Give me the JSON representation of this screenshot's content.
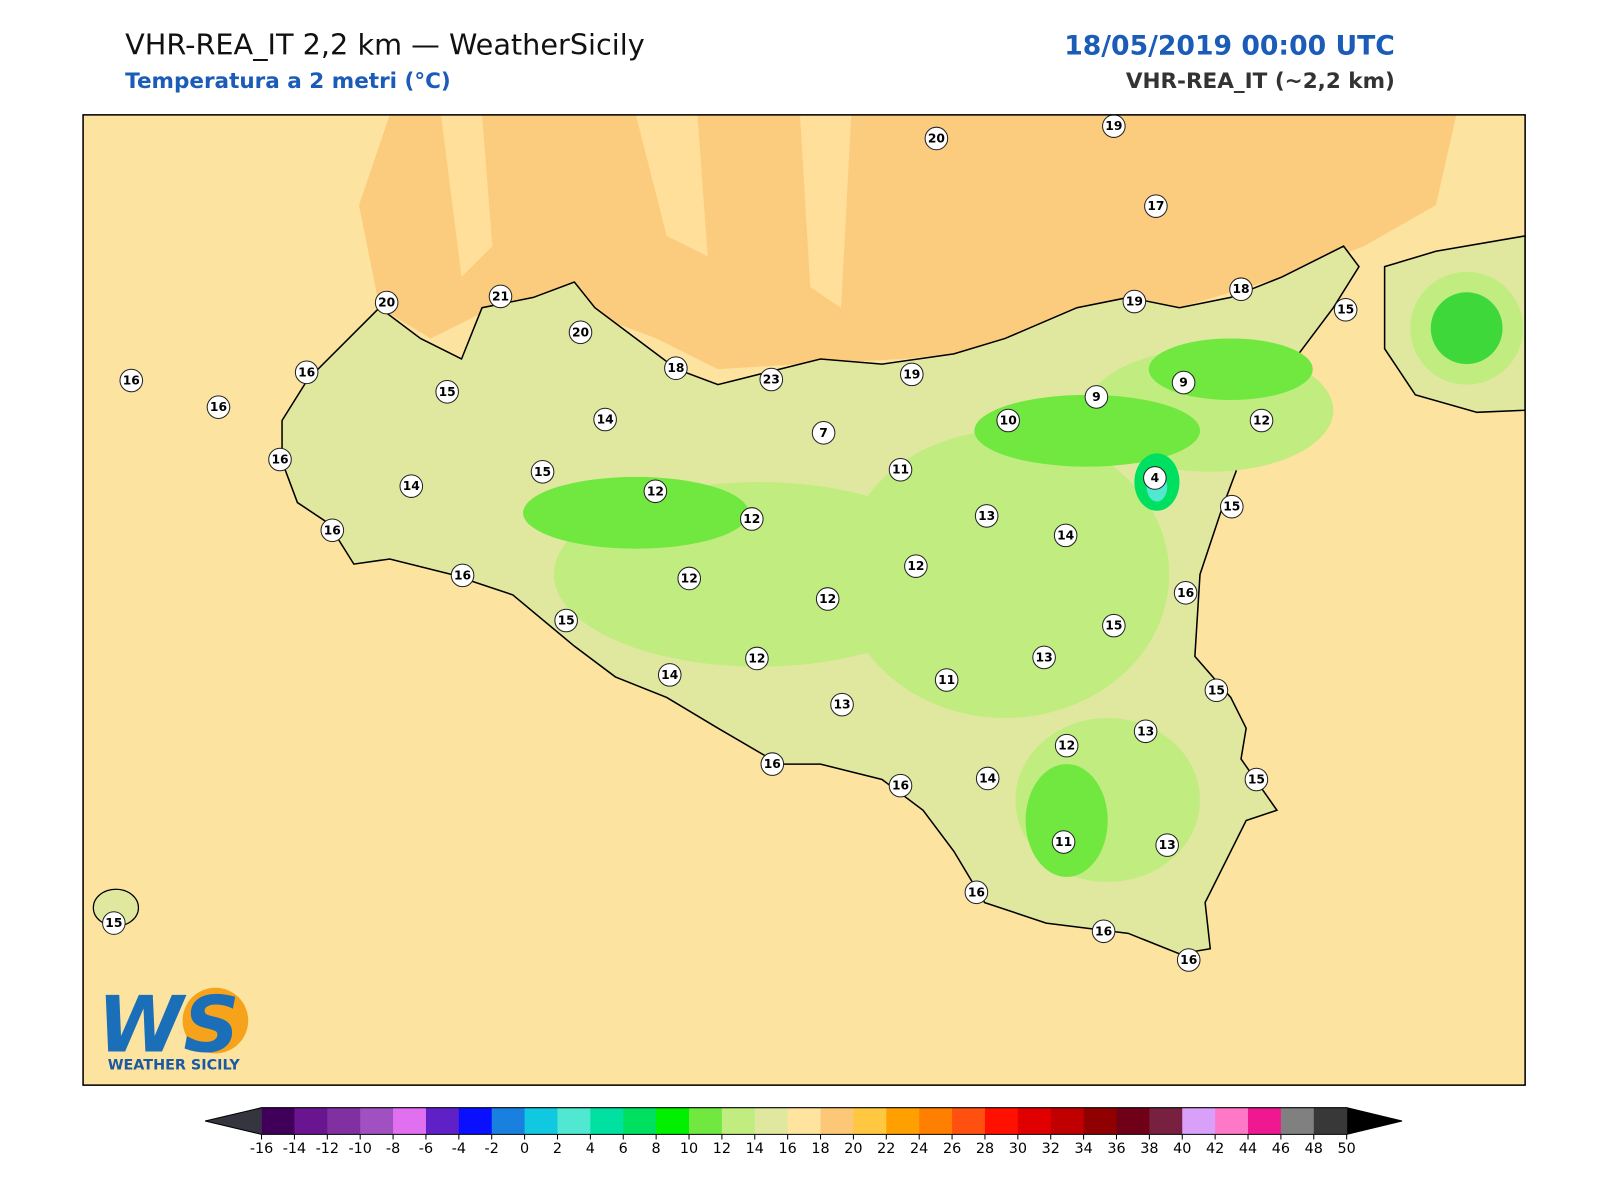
{
  "header": {
    "title": "VHR-REA_IT 2,2 km — WeatherSicily",
    "subtitle": "Temperatura a 2 metri (°C)",
    "datetime": "18/05/2019 00:00 UTC",
    "model": "VHR-REA_IT (~2,2 km)"
  },
  "logo": {
    "mark": "WS",
    "name": "WEATHER SICILY"
  },
  "stations": [
    20,
    19,
    17,
    20,
    21,
    20,
    19,
    18,
    15,
    16,
    16,
    16,
    15,
    18,
    23,
    19,
    9,
    9,
    14,
    7,
    10,
    12,
    16,
    14,
    15,
    12,
    11,
    4,
    12,
    13,
    14,
    15,
    16,
    16,
    12,
    12,
    12,
    16,
    15,
    15,
    12,
    13,
    14,
    11,
    13,
    15,
    13,
    12,
    16,
    14,
    16,
    15,
    11,
    13,
    16,
    16,
    16,
    15
  ],
  "colorbar": {
    "ticks": [
      -16,
      -14,
      -12,
      -10,
      -8,
      -6,
      -4,
      -2,
      0,
      2,
      4,
      6,
      8,
      10,
      12,
      14,
      16,
      18,
      20,
      22,
      24,
      26,
      28,
      30,
      32,
      34,
      36,
      38,
      40,
      42,
      44,
      46,
      48,
      50
    ],
    "colors": [
      "#40005a",
      "#6a1590",
      "#8030a0",
      "#a050c0",
      "#e070f0",
      "#6020c8",
      "#0a10ff",
      "#1a80e0",
      "#10c8e0",
      "#50e8d0",
      "#00e0a0",
      "#00e060",
      "#00f000",
      "#70e840",
      "#c0ec80",
      "#e0e8a0",
      "#ffe4a0",
      "#fcc878",
      "#ffc840",
      "#ffa000",
      "#ff8000",
      "#ff5010",
      "#ff1000",
      "#e00000",
      "#c00000",
      "#900000",
      "#700018",
      "#782040",
      "#d8a0f8",
      "#ff78c8",
      "#f01890",
      "#808080",
      "#383838"
    ],
    "under_color": "#353540",
    "over_color": "#000000"
  }
}
